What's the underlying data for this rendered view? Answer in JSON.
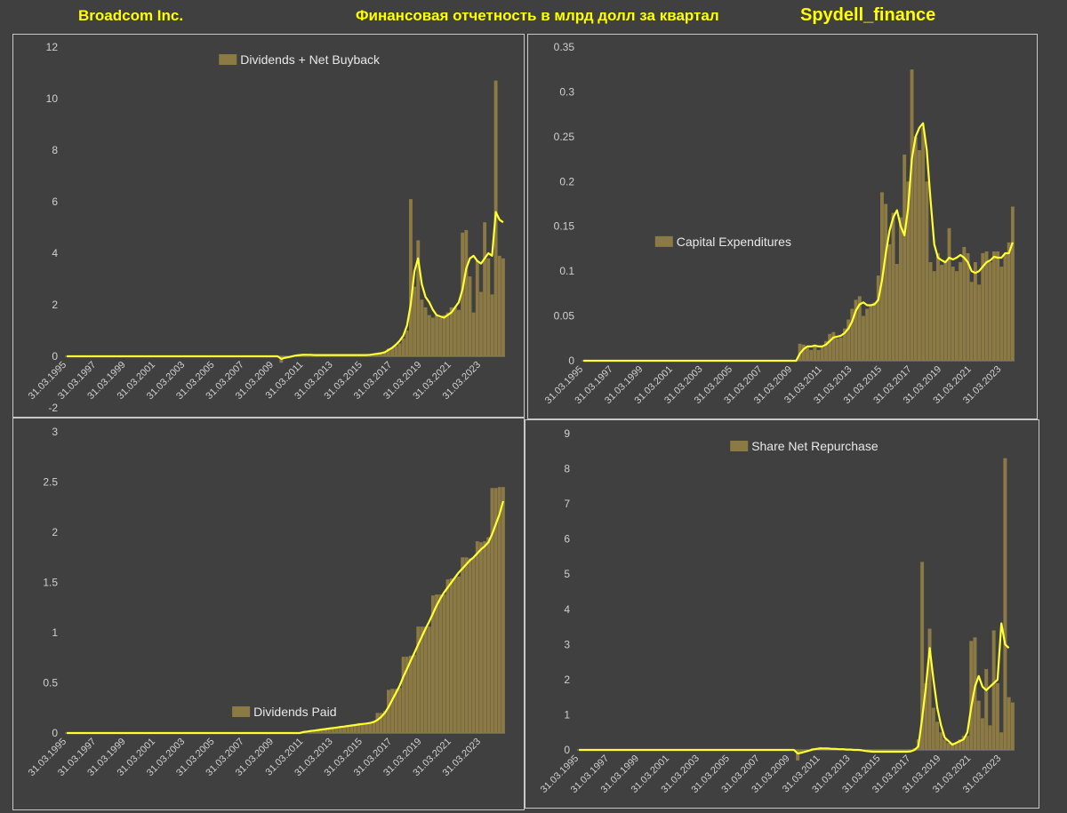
{
  "header": {
    "left": "Broadcom Inc.",
    "middle": "Финансовая отчетность в млрд долл за квартал",
    "right": "Spydell_finance"
  },
  "colors": {
    "bar": "#8c7a45",
    "line": "#ffff33",
    "axis_text": "#d0d0d0",
    "grid": "#555555"
  },
  "chart_data": [
    {
      "type": "bar",
      "legend": "Dividends + Net Buyback",
      "legend_position": "top-center",
      "ylim": [
        -2,
        12
      ],
      "yticks": [
        -2,
        0,
        2,
        4,
        6,
        8,
        10,
        12
      ],
      "xticks": [
        "31.03.1995",
        "31.03.1997",
        "31.03.1999",
        "31.03.2001",
        "31.03.2003",
        "31.03.2005",
        "31.03.2007",
        "31.03.2009",
        "31.03.2011",
        "31.03.2013",
        "31.03.2015",
        "31.03.2017",
        "31.03.2019",
        "31.03.2021",
        "31.03.2023"
      ],
      "series": [
        {
          "style": "bar",
          "values": [
            0,
            0,
            0,
            0,
            0,
            0,
            0,
            0,
            0,
            0,
            0,
            0,
            0,
            0,
            0,
            0,
            0,
            0,
            0,
            0,
            0,
            0,
            0,
            0,
            0,
            0,
            0,
            0,
            0,
            0,
            0,
            0,
            0,
            0,
            0,
            0,
            0,
            0,
            0,
            0,
            0,
            0,
            0,
            0,
            0,
            0,
            0,
            0,
            0,
            0,
            0,
            0,
            0,
            0,
            0,
            0,
            0,
            0,
            -0.25,
            -0.05,
            0,
            0,
            0.05,
            0.05,
            0.1,
            0.05,
            0.05,
            0.05,
            0.05,
            0.05,
            0.05,
            0.05,
            0.05,
            0.05,
            0.05,
            0.05,
            0.05,
            0.05,
            0.05,
            0.05,
            0.05,
            0.05,
            0.05,
            0.1,
            0.1,
            0.15,
            0.15,
            0.3,
            0.35,
            0.4,
            0.5,
            0.7,
            1.0,
            6.1,
            2.7,
            4.5,
            2.2,
            1.9,
            1.6,
            1.5,
            1.6,
            1.5,
            1.6,
            1.7,
            1.9,
            1.9,
            1.8,
            4.8,
            4.9,
            3.1,
            1.7,
            3.7,
            2.5,
            5.2,
            3.8,
            2.4,
            10.7,
            3.9,
            3.8
          ]
        },
        {
          "style": "line",
          "values": [
            0,
            0,
            0,
            0,
            0,
            0,
            0,
            0,
            0,
            0,
            0,
            0,
            0,
            0,
            0,
            0,
            0,
            0,
            0,
            0,
            0,
            0,
            0,
            0,
            0,
            0,
            0,
            0,
            0,
            0,
            0,
            0,
            0,
            0,
            0,
            0,
            0,
            0,
            0,
            0,
            0,
            0,
            0,
            0,
            0,
            0,
            0,
            0,
            0,
            0,
            0,
            0,
            0,
            0,
            0,
            0,
            0,
            0,
            -0.1,
            -0.06,
            -0.03,
            0,
            0.03,
            0.05,
            0.06,
            0.06,
            0.06,
            0.05,
            0.05,
            0.05,
            0.05,
            0.05,
            0.05,
            0.05,
            0.05,
            0.05,
            0.05,
            0.05,
            0.05,
            0.05,
            0.05,
            0.05,
            0.06,
            0.08,
            0.1,
            0.12,
            0.16,
            0.25,
            0.33,
            0.45,
            0.6,
            0.8,
            1.2,
            2.0,
            3.3,
            3.8,
            2.8,
            2.3,
            2.1,
            1.8,
            1.6,
            1.55,
            1.5,
            1.6,
            1.7,
            1.9,
            2.1,
            2.6,
            3.4,
            3.8,
            3.9,
            3.7,
            3.6,
            3.8,
            4.0,
            3.9,
            5.6,
            5.3,
            5.2
          ]
        }
      ]
    },
    {
      "type": "bar",
      "legend": "Capital Expenditures",
      "legend_position": "center-left",
      "ylim": [
        0,
        0.35
      ],
      "yticks": [
        0,
        0.05,
        0.1,
        0.15,
        0.2,
        0.25,
        0.3,
        0.35
      ],
      "xticks": [
        "31.03.1995",
        "31.03.1997",
        "31.03.1999",
        "31.03.2001",
        "31.03.2003",
        "31.03.2005",
        "31.03.2007",
        "31.03.2009",
        "31.03.2011",
        "31.03.2013",
        "31.03.2015",
        "31.03.2017",
        "31.03.2019",
        "31.03.2021",
        "31.03.2023"
      ],
      "series": [
        {
          "style": "bar",
          "values": [
            0,
            0,
            0,
            0,
            0,
            0,
            0,
            0,
            0,
            0,
            0,
            0,
            0,
            0,
            0,
            0,
            0,
            0,
            0,
            0,
            0,
            0,
            0,
            0,
            0,
            0,
            0,
            0,
            0,
            0,
            0,
            0,
            0,
            0,
            0,
            0,
            0,
            0,
            0,
            0,
            0,
            0,
            0,
            0,
            0,
            0,
            0,
            0,
            0,
            0,
            0,
            0,
            0,
            0,
            0,
            0,
            0,
            0,
            0.019,
            0.018,
            0.016,
            0.012,
            0.018,
            0.012,
            0.015,
            0.022,
            0.03,
            0.032,
            0.025,
            0.026,
            0.036,
            0.046,
            0.058,
            0.068,
            0.072,
            0.05,
            0.058,
            0.062,
            0.065,
            0.095,
            0.188,
            0.175,
            0.13,
            0.165,
            0.108,
            0.16,
            0.23,
            0.2,
            0.325,
            0.25,
            0.235,
            0.26,
            0.2,
            0.11,
            0.1,
            0.12,
            0.107,
            0.11,
            0.148,
            0.105,
            0.1,
            0.11,
            0.127,
            0.12,
            0.088,
            0.11,
            0.085,
            0.12,
            0.122,
            0.11,
            0.122,
            0.122,
            0.105,
            0.12,
            0.132,
            0.172
          ]
        },
        {
          "style": "line",
          "values": [
            0,
            0,
            0,
            0,
            0,
            0,
            0,
            0,
            0,
            0,
            0,
            0,
            0,
            0,
            0,
            0,
            0,
            0,
            0,
            0,
            0,
            0,
            0,
            0,
            0,
            0,
            0,
            0,
            0,
            0,
            0,
            0,
            0,
            0,
            0,
            0,
            0,
            0,
            0,
            0,
            0,
            0,
            0,
            0,
            0,
            0,
            0,
            0,
            0,
            0,
            0,
            0,
            0,
            0,
            0,
            0,
            0,
            0,
            0.008,
            0.013,
            0.016,
            0.016,
            0.017,
            0.016,
            0.016,
            0.018,
            0.022,
            0.026,
            0.027,
            0.028,
            0.031,
            0.036,
            0.044,
            0.056,
            0.063,
            0.065,
            0.062,
            0.062,
            0.063,
            0.068,
            0.09,
            0.12,
            0.145,
            0.16,
            0.168,
            0.15,
            0.14,
            0.17,
            0.225,
            0.25,
            0.26,
            0.265,
            0.235,
            0.18,
            0.13,
            0.115,
            0.112,
            0.11,
            0.115,
            0.113,
            0.115,
            0.118,
            0.115,
            0.11,
            0.1,
            0.098,
            0.1,
            0.105,
            0.11,
            0.112,
            0.116,
            0.115,
            0.115,
            0.12,
            0.12,
            0.132
          ]
        }
      ]
    },
    {
      "type": "bar",
      "legend": "Dividends Paid",
      "legend_position": "bottom-center",
      "ylim": [
        0,
        3
      ],
      "yticks": [
        0,
        0.5,
        1,
        1.5,
        2,
        2.5,
        3
      ],
      "xticks": [
        "31.03.1995",
        "31.03.1997",
        "31.03.1999",
        "31.03.2001",
        "31.03.2003",
        "31.03.2005",
        "31.03.2007",
        "31.03.2009",
        "31.03.2011",
        "31.03.2013",
        "31.03.2015",
        "31.03.2017",
        "31.03.2019",
        "31.03.2021",
        "31.03.2023"
      ],
      "series": [
        {
          "style": "bar",
          "values": [
            0,
            0,
            0,
            0,
            0,
            0,
            0,
            0,
            0,
            0,
            0,
            0,
            0,
            0,
            0,
            0,
            0,
            0,
            0,
            0,
            0,
            0,
            0,
            0,
            0,
            0,
            0,
            0,
            0,
            0,
            0,
            0,
            0,
            0,
            0,
            0,
            0,
            0,
            0,
            0,
            0,
            0,
            0,
            0,
            0,
            0,
            0,
            0,
            0,
            0,
            0,
            0,
            0,
            0,
            0,
            0,
            0,
            0,
            0,
            0,
            0,
            0,
            0,
            0,
            0.02,
            0.02,
            0.03,
            0.03,
            0.03,
            0.04,
            0.05,
            0.05,
            0.05,
            0.06,
            0.07,
            0.07,
            0.08,
            0.08,
            0.09,
            0.1,
            0.1,
            0.1,
            0.11,
            0.12,
            0.2,
            0.2,
            0.22,
            0.43,
            0.44,
            0.44,
            0.45,
            0.76,
            0.76,
            0.77,
            0.78,
            1.06,
            1.06,
            1.06,
            1.06,
            1.37,
            1.38,
            1.38,
            1.38,
            1.53,
            1.54,
            1.55,
            1.56,
            1.75,
            1.75,
            1.74,
            1.75,
            1.91,
            1.9,
            1.91,
            1.95,
            2.44,
            2.44,
            2.45,
            2.45
          ]
        },
        {
          "style": "line",
          "values": [
            0,
            0,
            0,
            0,
            0,
            0,
            0,
            0,
            0,
            0,
            0,
            0,
            0,
            0,
            0,
            0,
            0,
            0,
            0,
            0,
            0,
            0,
            0,
            0,
            0,
            0,
            0,
            0,
            0,
            0,
            0,
            0,
            0,
            0,
            0,
            0,
            0,
            0,
            0,
            0,
            0,
            0,
            0,
            0,
            0,
            0,
            0,
            0,
            0,
            0,
            0,
            0,
            0,
            0,
            0,
            0,
            0,
            0,
            0,
            0,
            0,
            0,
            0,
            0,
            0.01,
            0.015,
            0.02,
            0.025,
            0.03,
            0.035,
            0.04,
            0.045,
            0.05,
            0.055,
            0.06,
            0.065,
            0.07,
            0.075,
            0.08,
            0.085,
            0.09,
            0.095,
            0.1,
            0.11,
            0.13,
            0.16,
            0.2,
            0.26,
            0.33,
            0.4,
            0.47,
            0.56,
            0.64,
            0.72,
            0.8,
            0.88,
            0.96,
            1.04,
            1.11,
            1.19,
            1.27,
            1.34,
            1.4,
            1.45,
            1.5,
            1.55,
            1.6,
            1.64,
            1.68,
            1.72,
            1.75,
            1.79,
            1.83,
            1.86,
            1.9,
            1.98,
            2.08,
            2.18,
            2.31
          ]
        }
      ]
    },
    {
      "type": "bar",
      "legend": "Share Net Repurchase",
      "legend_position": "top-center",
      "ylim": [
        0,
        9
      ],
      "yticks": [
        0,
        1,
        2,
        3,
        4,
        5,
        6,
        7,
        8,
        9
      ],
      "xticks": [
        "31.03.1995",
        "31.03.1997",
        "31.03.1999",
        "31.03.2001",
        "31.03.2003",
        "31.03.2005",
        "31.03.2007",
        "31.03.2009",
        "31.03.2011",
        "31.03.2013",
        "31.03.2015",
        "31.03.2017",
        "31.03.2019",
        "31.03.2021",
        "31.03.2023"
      ],
      "series": [
        {
          "style": "bar",
          "values": [
            0,
            0,
            0,
            0,
            0,
            0,
            0,
            0,
            0,
            0,
            0,
            0,
            0,
            0,
            0,
            0,
            0,
            0,
            0,
            0,
            0,
            0,
            0,
            0,
            0,
            0,
            0,
            0,
            0,
            0,
            0,
            0,
            0,
            0,
            0,
            0,
            0,
            0,
            0,
            0,
            0,
            0,
            0,
            0,
            0,
            0,
            0,
            0,
            0,
            0,
            0,
            0,
            0,
            0,
            0,
            0,
            0,
            0,
            -0.3,
            -0.1,
            -0.05,
            0,
            0.05,
            0.05,
            0.08,
            0.05,
            0.05,
            0.03,
            0.03,
            0.02,
            0.02,
            0.02,
            0.01,
            0,
            0,
            0,
            -0.03,
            -0.05,
            -0.08,
            -0.05,
            -0.05,
            -0.05,
            -0.03,
            -0.05,
            -0.05,
            -0.05,
            -0.03,
            -0.05,
            -0.05,
            0.05,
            0.3,
            5.35,
            1.9,
            3.45,
            1.2,
            0.8,
            0.5,
            0.3,
            0.2,
            0.2,
            0.2,
            0.3,
            0.4,
            0.4,
            3.1,
            3.2,
            1.4,
            0.9,
            2.3,
            0.7,
            3.4,
            1.9,
            0.5,
            8.3,
            1.5,
            1.35
          ]
        },
        {
          "style": "line",
          "values": [
            0,
            0,
            0,
            0,
            0,
            0,
            0,
            0,
            0,
            0,
            0,
            0,
            0,
            0,
            0,
            0,
            0,
            0,
            0,
            0,
            0,
            0,
            0,
            0,
            0,
            0,
            0,
            0,
            0,
            0,
            0,
            0,
            0,
            0,
            0,
            0,
            0,
            0,
            0,
            0,
            0,
            0,
            0,
            0,
            0,
            0,
            0,
            0,
            0,
            0,
            0,
            0,
            0,
            0,
            0,
            0,
            0,
            0,
            -0.1,
            -0.08,
            -0.05,
            -0.02,
            0.01,
            0.03,
            0.04,
            0.04,
            0.04,
            0.03,
            0.03,
            0.02,
            0.02,
            0.01,
            0.01,
            0,
            0,
            -0.01,
            -0.03,
            -0.04,
            -0.05,
            -0.05,
            -0.05,
            -0.05,
            -0.05,
            -0.05,
            -0.05,
            -0.05,
            -0.05,
            -0.05,
            -0.04,
            0.0,
            0.1,
            0.9,
            1.8,
            2.9,
            2.0,
            1.2,
            0.7,
            0.35,
            0.25,
            0.15,
            0.2,
            0.25,
            0.3,
            0.5,
            1.2,
            1.8,
            2.1,
            1.8,
            1.7,
            1.8,
            1.9,
            2.0,
            3.6,
            3.0,
            2.9
          ]
        }
      ]
    }
  ]
}
